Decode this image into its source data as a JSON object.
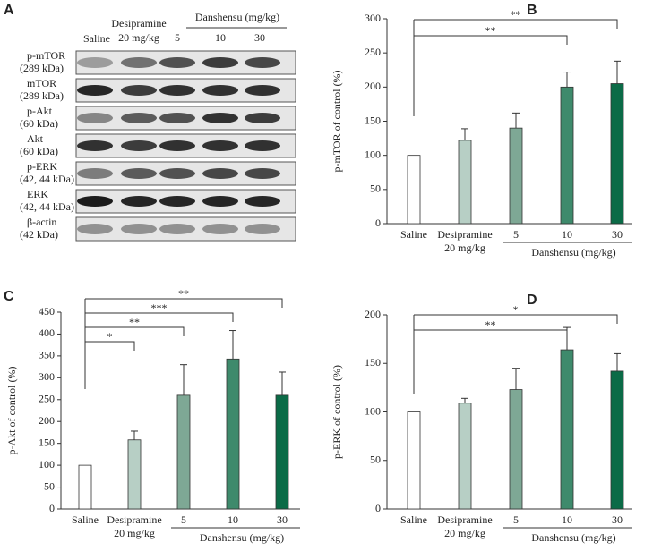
{
  "panel_a": {
    "label": "A",
    "lanes": [
      "Saline",
      "Desipramine",
      "20 mg/kg",
      "Danshensu (mg/kg)",
      "5",
      "10",
      "30"
    ],
    "rows": [
      [
        "p-mTOR",
        "(289 kDa)"
      ],
      [
        "mTOR",
        "(289 kDa)"
      ],
      [
        "p-Akt",
        "(60 kDa)"
      ],
      [
        "Akt",
        "(60 kDa)"
      ],
      [
        "p-ERK",
        "(42, 44 kDa)"
      ],
      [
        "ERK",
        "(42, 44 kDa)"
      ],
      [
        "β-actin",
        "(42 kDa)"
      ]
    ]
  },
  "chart_data": [
    {
      "label": "B",
      "type": "bar",
      "y_label": "p-mTOR of control (%)",
      "categories": [
        "Saline",
        "Desipramine",
        "5",
        "10",
        "30"
      ],
      "category_sublabels": [
        null,
        "20 mg/kg",
        null,
        null,
        null
      ],
      "group_label": "Danshensu (mg/kg)",
      "values": [
        100,
        122,
        140,
        200,
        205
      ],
      "errors": [
        null,
        17,
        22,
        22,
        33
      ],
      "colors": [
        "#ffffff",
        "#b7cfc5",
        "#7ea895",
        "#3e8a6c",
        "#0b6b47"
      ],
      "ylim": [
        0,
        300
      ],
      "yticks": [
        0,
        50,
        100,
        150,
        200,
        250,
        300
      ],
      "significance": [
        {
          "to": "10",
          "label": "**"
        },
        {
          "to": "30",
          "label": "**"
        }
      ]
    },
    {
      "label": "C",
      "type": "bar",
      "y_label": "p-Akt of control (%)",
      "categories": [
        "Saline",
        "Desipramine",
        "5",
        "10",
        "30"
      ],
      "category_sublabels": [
        null,
        "20 mg/kg",
        null,
        null,
        null
      ],
      "group_label": "Danshensu (mg/kg)",
      "values": [
        100,
        158,
        260,
        343,
        260
      ],
      "errors": [
        null,
        20,
        70,
        65,
        53
      ],
      "colors": [
        "#ffffff",
        "#b7cfc5",
        "#7ea895",
        "#3e8a6c",
        "#0b6b47"
      ],
      "ylim": [
        0,
        450
      ],
      "yticks": [
        0,
        50,
        100,
        150,
        200,
        250,
        300,
        350,
        400,
        450
      ],
      "significance": [
        {
          "to": "Desipramine",
          "label": "*"
        },
        {
          "to": "5",
          "label": "**"
        },
        {
          "to": "10",
          "label": "***"
        },
        {
          "to": "30",
          "label": "**"
        }
      ]
    },
    {
      "label": "D",
      "type": "bar",
      "y_label": "p-ERK of control (%)",
      "categories": [
        "Saline",
        "Desipramine",
        "5",
        "10",
        "30"
      ],
      "category_sublabels": [
        null,
        "20 mg/kg",
        null,
        null,
        null
      ],
      "group_label": "Danshensu (mg/kg)",
      "values": [
        100,
        109,
        123,
        164,
        142
      ],
      "errors": [
        null,
        5,
        22,
        23,
        18
      ],
      "colors": [
        "#ffffff",
        "#b7cfc5",
        "#7ea895",
        "#3e8a6c",
        "#0b6b47"
      ],
      "ylim": [
        0,
        200
      ],
      "yticks": [
        0,
        50,
        100,
        150,
        200
      ],
      "significance": [
        {
          "to": "10",
          "label": "**"
        },
        {
          "to": "30",
          "label": "*"
        }
      ]
    }
  ]
}
